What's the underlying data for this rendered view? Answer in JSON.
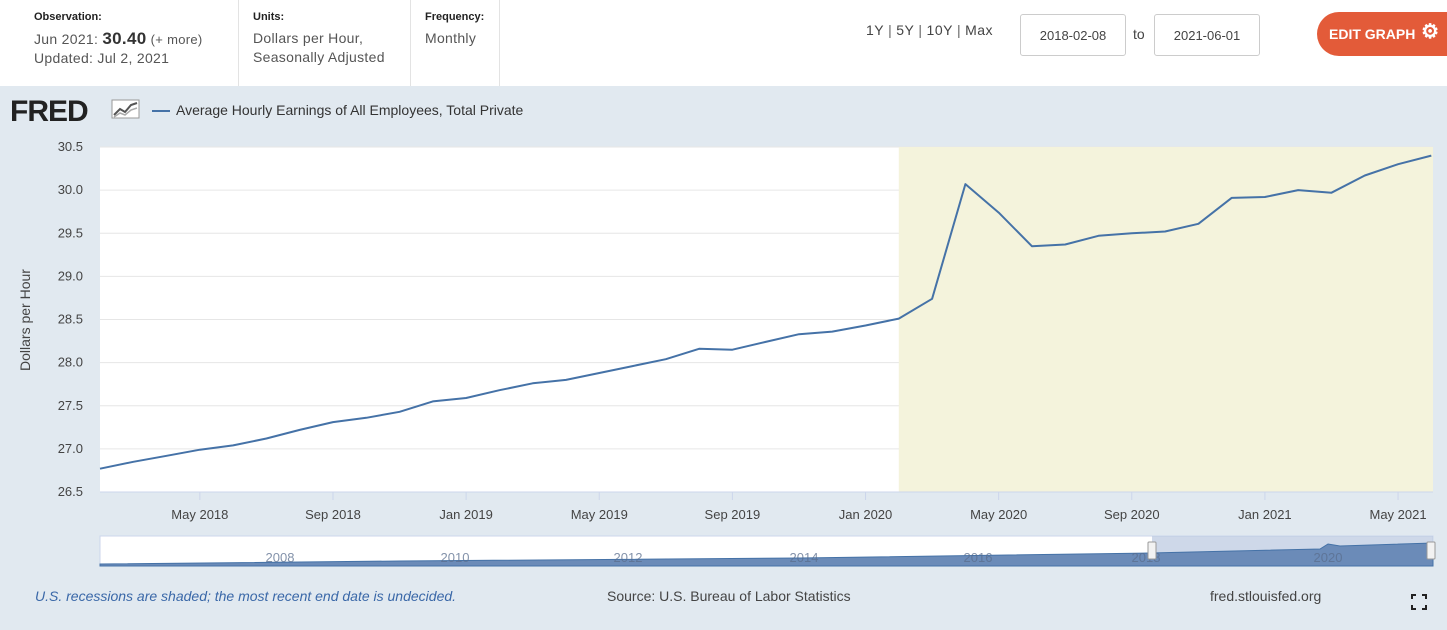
{
  "header": {
    "observation_label": "Observation:",
    "observation_date": "Jun 2021:",
    "observation_value": "30.40",
    "observation_more": "(+ more)",
    "updated": "Updated: Jul 2, 2021",
    "units_label": "Units:",
    "units_line1": "Dollars per Hour,",
    "units_line2": "Seasonally Adjusted",
    "frequency_label": "Frequency:",
    "frequency_value": "Monthly",
    "range_1y": "1Y",
    "range_5y": "5Y",
    "range_10y": "10Y",
    "range_max": "Max",
    "range_sep": "|",
    "date_from": "2018-02-08",
    "date_to": "2021-06-01",
    "to_label": "to",
    "edit_graph": "EDIT GRAPH"
  },
  "logo": {
    "text": "FRED"
  },
  "footer": {
    "recession_note": "U.S. recessions are shaded; the most recent end date is undecided.",
    "source": "Source: U.S. Bureau of Labor Statistics",
    "site": "fred.stlouisfed.org"
  },
  "colors": {
    "line": "#4572a7",
    "recession": "#f4f3dc",
    "panel": "#e1e9f0",
    "button": "#e35b39",
    "navigator_fill": "#6b8bb8"
  },
  "chart_data": {
    "type": "line",
    "title": "",
    "xlabel": "",
    "ylabel": "Dollars per Hour",
    "ylim": [
      26.5,
      30.5
    ],
    "yticks": [
      26.5,
      27.0,
      27.5,
      28.0,
      28.5,
      29.0,
      29.5,
      30.0,
      30.5
    ],
    "xticks": [
      {
        "label": "May 2018",
        "month": "2018-05"
      },
      {
        "label": "Sep 2018",
        "month": "2018-09"
      },
      {
        "label": "Jan 2019",
        "month": "2019-01"
      },
      {
        "label": "May 2019",
        "month": "2019-05"
      },
      {
        "label": "Sep 2019",
        "month": "2019-09"
      },
      {
        "label": "Jan 2020",
        "month": "2020-01"
      },
      {
        "label": "May 2020",
        "month": "2020-05"
      },
      {
        "label": "Sep 2020",
        "month": "2020-09"
      },
      {
        "label": "Jan 2021",
        "month": "2021-01"
      },
      {
        "label": "May 2021",
        "month": "2021-05"
      }
    ],
    "grid": true,
    "recession": {
      "start": "2020-02",
      "end": "2021-06"
    },
    "series": [
      {
        "name": "Average Hourly Earnings of All Employees, Total Private",
        "points": [
          {
            "x": "2018-02",
            "y": 26.77
          },
          {
            "x": "2018-03",
            "y": 26.85
          },
          {
            "x": "2018-04",
            "y": 26.92
          },
          {
            "x": "2018-05",
            "y": 26.99
          },
          {
            "x": "2018-06",
            "y": 27.04
          },
          {
            "x": "2018-07",
            "y": 27.12
          },
          {
            "x": "2018-08",
            "y": 27.22
          },
          {
            "x": "2018-09",
            "y": 27.31
          },
          {
            "x": "2018-10",
            "y": 27.36
          },
          {
            "x": "2018-11",
            "y": 27.43
          },
          {
            "x": "2018-12",
            "y": 27.55
          },
          {
            "x": "2019-01",
            "y": 27.59
          },
          {
            "x": "2019-02",
            "y": 27.68
          },
          {
            "x": "2019-03",
            "y": 27.76
          },
          {
            "x": "2019-04",
            "y": 27.8
          },
          {
            "x": "2019-05",
            "y": 27.88
          },
          {
            "x": "2019-06",
            "y": 27.96
          },
          {
            "x": "2019-07",
            "y": 28.04
          },
          {
            "x": "2019-08",
            "y": 28.16
          },
          {
            "x": "2019-09",
            "y": 28.15
          },
          {
            "x": "2019-10",
            "y": 28.24
          },
          {
            "x": "2019-11",
            "y": 28.33
          },
          {
            "x": "2019-12",
            "y": 28.36
          },
          {
            "x": "2020-01",
            "y": 28.43
          },
          {
            "x": "2020-02",
            "y": 28.51
          },
          {
            "x": "2020-03",
            "y": 28.74
          },
          {
            "x": "2020-04",
            "y": 30.07
          },
          {
            "x": "2020-05",
            "y": 29.74
          },
          {
            "x": "2020-06",
            "y": 29.35
          },
          {
            "x": "2020-07",
            "y": 29.37
          },
          {
            "x": "2020-08",
            "y": 29.47
          },
          {
            "x": "2020-09",
            "y": 29.5
          },
          {
            "x": "2020-10",
            "y": 29.52
          },
          {
            "x": "2020-11",
            "y": 29.61
          },
          {
            "x": "2020-12",
            "y": 29.91
          },
          {
            "x": "2021-01",
            "y": 29.92
          },
          {
            "x": "2021-02",
            "y": 30.0
          },
          {
            "x": "2021-03",
            "y": 29.97
          },
          {
            "x": "2021-04",
            "y": 30.17
          },
          {
            "x": "2021-05",
            "y": 30.3
          },
          {
            "x": "2021-06",
            "y": 30.4
          }
        ]
      }
    ],
    "navigator": {
      "labels": [
        "2008",
        "2010",
        "2012",
        "2014",
        "2016",
        "2018",
        "2020"
      ]
    }
  }
}
